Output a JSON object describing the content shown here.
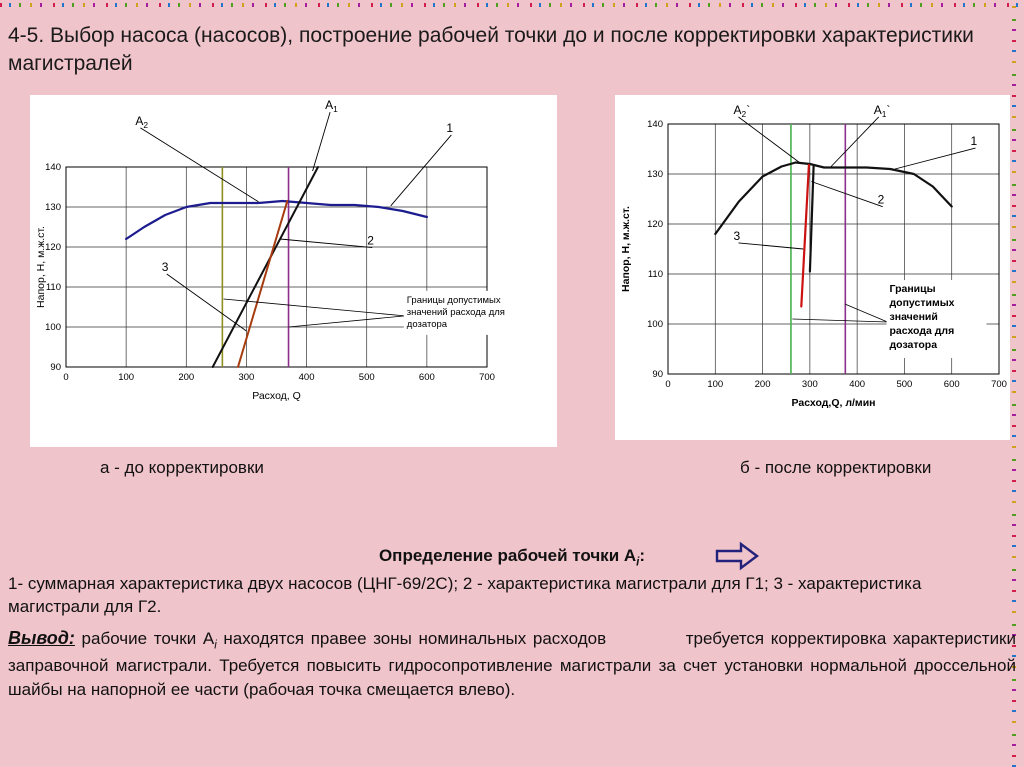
{
  "slide": {
    "title": "4-5. Выбор насоса (насосов), построение рабочей точки до и после корректировки характеристики магистралей",
    "caption_a": "а - до корректировки",
    "caption_b": "б - после корректировки",
    "heading": {
      "prefix": "Определение рабочей точки А",
      "sub": "i",
      "suffix": ":"
    },
    "legend_line": "1- суммарная характеристика двух насосов (ЦНГ-69/2С); 2 - характеристика магистрали для Г1; 3 - характеристика магистрали для Г2.",
    "vyvod": {
      "label": "Вывод:",
      "pre": " рабочие точки А",
      "sub": "i",
      "post": " находятся правее зоны номинальных расходов            требуется корректировка характеристики заправочной магистрали. Требуется повысить гидросопротивление магистрали за счет установки нормальной дроссельной шайбы на напорной ее части (рабочая точка смещается влево)."
    }
  },
  "chart_data": [
    {
      "type": "line",
      "title": "а - до корректировки",
      "xlabel": "Расход, Q",
      "ylabel": "Напор, Н, м.ж.ст.",
      "xlim": [
        0,
        700
      ],
      "ylim": [
        90,
        140
      ],
      "xticks": [
        0,
        100,
        200,
        300,
        400,
        500,
        600,
        700
      ],
      "yticks": [
        90,
        100,
        110,
        120,
        130,
        140
      ],
      "grid": true,
      "series": [
        {
          "name": "1 - суммарная характеристика двух насосов (ЦНГ-69/2С)",
          "color": "#1c1c8f",
          "width": 2.2,
          "points": [
            [
              100,
              122
            ],
            [
              130,
              125
            ],
            [
              165,
              128
            ],
            [
              200,
              130
            ],
            [
              240,
              131
            ],
            [
              280,
              131
            ],
            [
              320,
              131
            ],
            [
              360,
              131.5
            ],
            [
              400,
              131
            ],
            [
              440,
              130.5
            ],
            [
              480,
              130.5
            ],
            [
              520,
              130
            ],
            [
              560,
              129
            ],
            [
              600,
              127.5
            ]
          ]
        },
        {
          "name": "2 - характеристика магистрали для Г1",
          "color": "#111111",
          "width": 2,
          "points": [
            [
              244,
              90
            ],
            [
              419,
              140
            ]
          ]
        },
        {
          "name": "3 - характеристика магистрали для Г2",
          "color": "#a63b0f",
          "width": 2,
          "points": [
            [
              286,
              90
            ],
            [
              368,
              131.5
            ]
          ]
        }
      ],
      "vlines": [
        {
          "x": 260,
          "color": "#8f8f1f",
          "y1": 90,
          "y2": 140
        },
        {
          "x": 370,
          "color": "#8c2d8c",
          "y1": 90,
          "y2": 140
        }
      ],
      "callouts": [
        {
          "label": "А",
          "sub": "2",
          "post": "",
          "tx": 0.2,
          "ty": 0.085,
          "target": [
            320,
            131.3
          ]
        },
        {
          "label": "А",
          "sub": "1",
          "post": "",
          "tx": 0.56,
          "ty": 0.04,
          "target": [
            410,
            139
          ]
        },
        {
          "label": "1",
          "sub": "",
          "post": "",
          "tx": 0.79,
          "ty": 0.105,
          "target": [
            540,
            130.3
          ]
        },
        {
          "label": "2",
          "sub": "",
          "post": "",
          "tx": 0.64,
          "ty": 0.425,
          "target": [
            356,
            122
          ]
        },
        {
          "label": "3",
          "sub": "",
          "post": "",
          "tx": 0.25,
          "ty": 0.5,
          "target": [
            300,
            99
          ]
        }
      ],
      "annotation": {
        "lines": [
          "Границы допустимых",
          "значений расхода для",
          "дозатора"
        ],
        "tx": 0.715,
        "ty": 0.565,
        "bold": false,
        "leaders": [
          [
            262,
            107
          ],
          [
            370,
            100
          ]
        ]
      }
    },
    {
      "type": "line",
      "title": "б - после корректировки",
      "xlabel": "Расход,Q, л/мин",
      "ylabel": "Напор, Н, м.ж.ст.",
      "xlim": [
        0,
        700
      ],
      "ylim": [
        90,
        140
      ],
      "xticks": [
        0,
        100,
        200,
        300,
        400,
        500,
        600,
        700
      ],
      "yticks": [
        90,
        100,
        110,
        120,
        130,
        140
      ],
      "grid": true,
      "series": [
        {
          "name": "1 - суммарная характеристика двух насосов (ЦНГ-69/2С)",
          "color": "#111111",
          "width": 2.2,
          "points": [
            [
              100,
              118
            ],
            [
              150,
              124.5
            ],
            [
              200,
              129.5
            ],
            [
              240,
              131.5
            ],
            [
              270,
              132.3
            ],
            [
              300,
              132
            ],
            [
              330,
              131.3
            ],
            [
              370,
              131.3
            ],
            [
              420,
              131.3
            ],
            [
              470,
              131
            ],
            [
              520,
              130
            ],
            [
              560,
              127.5
            ],
            [
              600,
              123.5
            ]
          ]
        },
        {
          "name": "2 - характеристика магистрали для Г1 (после корректировки)",
          "color": "#cc1111",
          "width": 2.2,
          "points": [
            [
              282,
              103.5
            ],
            [
              298,
              131.8
            ]
          ]
        },
        {
          "name": "3 - характеристика магистрали для Г2 (после корректировки)",
          "color": "#111111",
          "width": 2.2,
          "points": [
            [
              300,
              110.5
            ],
            [
              308,
              131.5
            ]
          ]
        }
      ],
      "vlines": [
        {
          "x": 260,
          "color": "#49b04f",
          "y1": 90,
          "y2": 140
        },
        {
          "x": 375,
          "color": "#8c2d8c",
          "y1": 90,
          "y2": 140
        }
      ],
      "callouts": [
        {
          "label": "А",
          "sub": "2",
          "post": "`",
          "tx": 0.3,
          "ty": 0.055,
          "target": [
            278,
            132.3
          ]
        },
        {
          "label": "А",
          "sub": "1",
          "post": "`",
          "tx": 0.655,
          "ty": 0.055,
          "target": [
            345,
            131.5
          ]
        },
        {
          "label": "1",
          "sub": "",
          "post": "",
          "tx": 0.9,
          "ty": 0.145,
          "target": [
            480,
            131
          ]
        },
        {
          "label": "2",
          "sub": "",
          "post": "",
          "tx": 0.665,
          "ty": 0.315,
          "target": [
            303,
            128.5
          ]
        },
        {
          "label": "3",
          "sub": "",
          "post": "",
          "tx": 0.3,
          "ty": 0.42,
          "target": [
            286,
            115
          ]
        }
      ],
      "annotation": {
        "lines": [
          "Границы",
          "допустимых",
          "значений",
          "расхода для",
          "дозатора"
        ],
        "tx": 0.695,
        "ty": 0.545,
        "bold": true,
        "leaders": [
          [
            263,
            101
          ],
          [
            374,
            104
          ]
        ]
      }
    }
  ]
}
